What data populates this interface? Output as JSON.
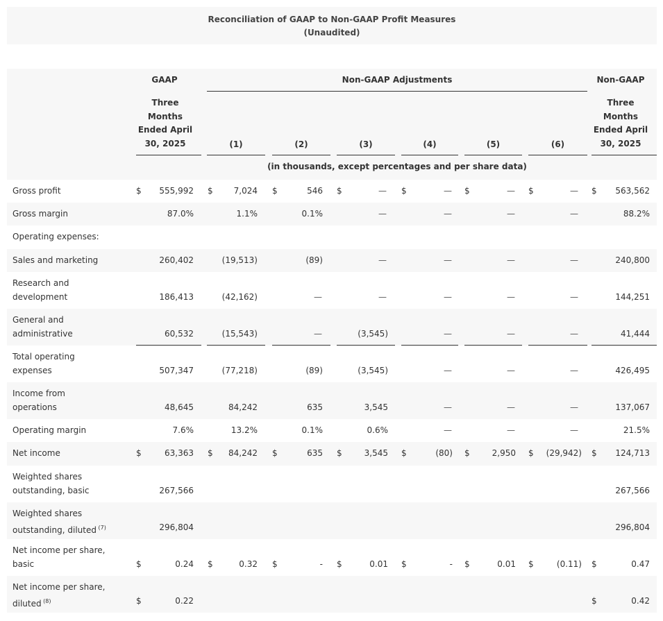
{
  "title": "Reconciliation of GAAP to Non-GAAP Profit Measures",
  "subtitle": "(Unaudited)",
  "header": {
    "gaap": "GAAP",
    "adjustments": "Non-GAAP Adjustments",
    "nongaap": "Non-GAAP",
    "period_line1": "Three",
    "period_line2": "Months",
    "period_line3": "Ended April",
    "period_line4": "30, 2025",
    "adj_cols": [
      "(1)",
      "(2)",
      "(3)",
      "(4)",
      "(5)",
      "(6)"
    ],
    "units_note": "(in thousands, except percentages and per share data)"
  },
  "currency_symbol": "$",
  "rows": [
    {
      "label": [
        "Gross profit"
      ],
      "shade": false,
      "dollar": true,
      "values": [
        "555,992",
        "7,024",
        "546",
        "—",
        "—",
        "—",
        "—",
        "563,562"
      ]
    },
    {
      "label": [
        "Gross margin"
      ],
      "shade": true,
      "dollar": false,
      "values": [
        "87.0%",
        "1.1%",
        "0.1%",
        "—",
        "—",
        "—",
        "—",
        "88.2%"
      ]
    },
    {
      "label": [
        "Operating expenses:"
      ],
      "shade": false,
      "dollar": false,
      "values": []
    },
    {
      "label": [
        " Sales and marketing"
      ],
      "shade": true,
      "dollar": false,
      "values": [
        "260,402",
        "(19,513)",
        "(89)",
        "—",
        "—",
        "—",
        "—",
        "240,800"
      ]
    },
    {
      "label": [
        " Research and",
        " development"
      ],
      "shade": false,
      "dollar": false,
      "values": [
        "186,413",
        "(42,162)",
        "—",
        "—",
        "—",
        "—",
        "—",
        "144,251"
      ]
    },
    {
      "label": [
        " General and",
        " administrative"
      ],
      "shade": true,
      "dollar": false,
      "values": [
        "60,532",
        "(15,543)",
        "—",
        "(3,545)",
        "—",
        "—",
        "—",
        "41,444"
      ]
    },
    {
      "label": [
        "Total operating",
        "expenses"
      ],
      "shade": false,
      "dollar": false,
      "values": [
        "507,347",
        "(77,218)",
        "(89)",
        "(3,545)",
        "—",
        "—",
        "—",
        "426,495"
      ]
    },
    {
      "label": [
        "Income from",
        "operations"
      ],
      "shade": true,
      "dollar": false,
      "values": [
        "48,645",
        "84,242",
        "635",
        "3,545",
        "—",
        "—",
        "—",
        "137,067"
      ]
    },
    {
      "label": [
        "Operating margin"
      ],
      "shade": false,
      "dollar": false,
      "values": [
        "7.6%",
        "13.2%",
        "0.1%",
        "0.6%",
        "—",
        "—",
        "—",
        "21.5%"
      ]
    },
    {
      "label": [
        "Net income"
      ],
      "shade": true,
      "dollar": true,
      "values": [
        "63,363",
        "84,242",
        "635",
        "3,545",
        "(80)",
        "2,950",
        "(29,942)",
        "124,713"
      ]
    },
    {
      "label": [
        "Weighted shares",
        "outstanding, basic"
      ],
      "shade": false,
      "dollar": false,
      "values": [
        "267,566",
        "",
        "",
        "",
        "",
        "",
        "",
        "267,566"
      ]
    },
    {
      "label": [
        "Weighted shares",
        "outstanding, diluted"
      ],
      "sup": "(7)",
      "shade": true,
      "dollar": false,
      "values": [
        "296,804",
        "",
        "",
        "",
        "",
        "",
        "",
        "296,804"
      ]
    },
    {
      "label": [
        "Net income per share,",
        "basic"
      ],
      "shade": false,
      "dollar": true,
      "values": [
        "0.24",
        "0.32",
        "-",
        "0.01",
        "-",
        "0.01",
        "(0.11)",
        "0.47"
      ]
    },
    {
      "label": [
        "Net income per share,",
        "diluted"
      ],
      "sup": "(8)",
      "shade": true,
      "dollar": true,
      "dollar_cols": [
        0,
        7
      ],
      "values": [
        "0.22",
        "",
        "",
        "",
        "",
        "",
        "",
        "0.42"
      ]
    }
  ]
}
